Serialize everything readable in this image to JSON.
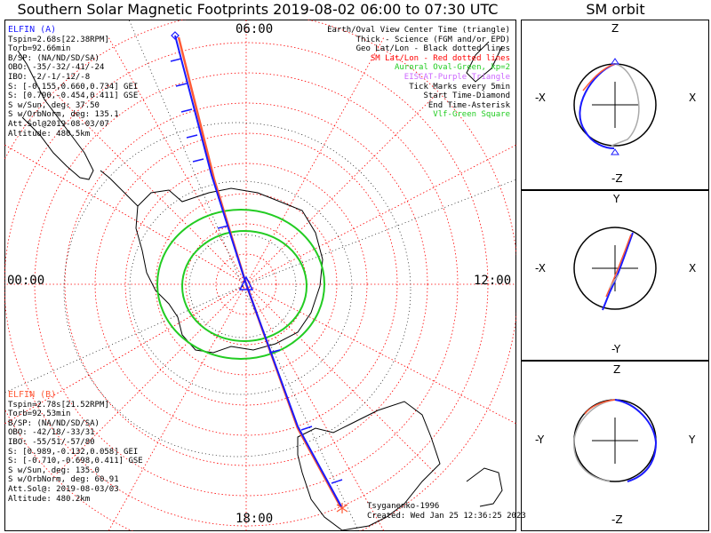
{
  "title": "Southern Solar Magnetic Footprints 2019-08-02 06:00 to 07:30 UTC",
  "sm_orbit_title": "SM orbit",
  "clock_labels": {
    "top": "06:00",
    "left": "00:00",
    "right": "12:00",
    "bottom": "18:00"
  },
  "elfin_a": {
    "name": "ELFIN (A)",
    "color": "#1a1aff",
    "lines": [
      "Tspin=2.68s[22.38RPM]",
      "Torb=92.66min",
      "B/SP: (NA/ND/SD/SA)",
      "OBO: -35/-32/-41/-24",
      "IBO: -2/-1/-12/-8",
      "S: [-0.155,0.660,0.734] GEI",
      "S: [0.790,-0.454,0.411] GSE",
      "S w/Sun, deg: 37.50",
      "S w/OrbNorm, deg: 135.1",
      "Att.Sol@2019-08-03/07",
      "Altitude: 480.5km"
    ]
  },
  "elfin_b": {
    "name": "ELFIN (B)",
    "color": "#ff5a36",
    "lines": [
      "Tspin=2.78s[21.52RPM]",
      "Torb=92.53min",
      "B/SP: (NA/ND/SD/SA)",
      "OBO: -42/18/-33/31",
      "IBO: -55/51/-57/80",
      "S: [0.989,-0.132,0.058] GEI",
      "S: [-0.710,-0.698,0.411] GSE",
      "S w/Sun, deg: 135.0",
      "S w/OrbNorm, deg: 60.91",
      "Att.Sol@: 2019-08-03/03",
      "Altitude: 480.2km"
    ]
  },
  "legend": [
    {
      "text": "Earth/Oval View Center Time (triangle)",
      "color": "#000000"
    },
    {
      "text": "Thick - Science (FGM and/or EPD)",
      "color": "#000000"
    },
    {
      "text": "Geo Lat/Lon - Black dotted lines",
      "color": "#000000"
    },
    {
      "text": "SM Lat/Lon - Red dotted lines",
      "color": "#ff0000"
    },
    {
      "text": "Auroral Oval-Green, kp=2",
      "color": "#22cc22"
    },
    {
      "text": "EISCAT-Purple Triangle",
      "color": "#cc66ff"
    },
    {
      "text": "Tick Marks every 5min",
      "color": "#000000"
    },
    {
      "text": "Start Time-Diamond",
      "color": "#000000"
    },
    {
      "text": "End Time-Asterisk",
      "color": "#000000"
    },
    {
      "text": "Vlf-Green Square",
      "color": "#22cc22"
    }
  ],
  "credit": {
    "author": "Tsyganenko-1996",
    "created": "Created: Wed Jan 25 12:36:25 2023"
  },
  "sm_panels": [
    {
      "top": "Z",
      "bottom": "-Z",
      "left": "-X",
      "right": "X"
    },
    {
      "top": "Y",
      "bottom": "-Y",
      "left": "-X",
      "right": "X"
    },
    {
      "top": "Z",
      "bottom": "-Z",
      "left": "-Y",
      "right": "Y"
    }
  ],
  "colors": {
    "elfin_a": "#1a1aff",
    "elfin_b": "#ff5a36",
    "auroral_oval": "#22cc22",
    "sm_grid": "#ff0000",
    "geo_grid": "#000000"
  }
}
